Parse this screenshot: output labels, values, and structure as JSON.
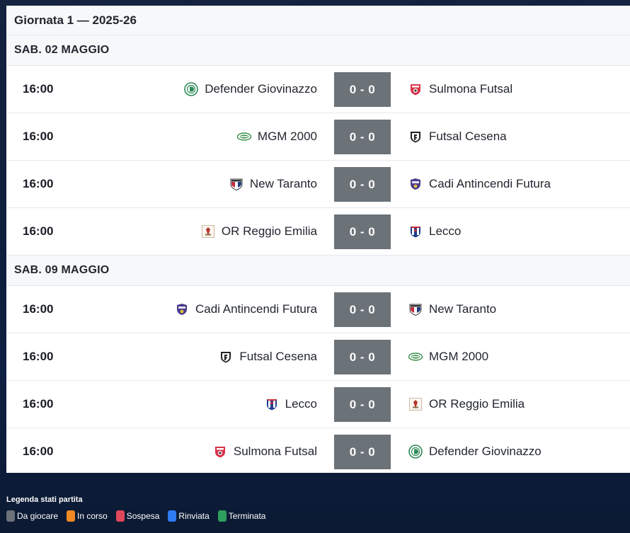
{
  "title": "Giornata 1 — 2025-26",
  "days": [
    {
      "label": "SAB. 02 MAGGIO",
      "matches": [
        {
          "time": "16:00",
          "home": "Defender Giovinazzo",
          "home_logo": "defender-logo",
          "score": "0 - 0",
          "away": "Sulmona Futsal",
          "away_logo": "sulmona-logo"
        },
        {
          "time": "16:00",
          "home": "MGM 2000",
          "home_logo": "mgm-logo",
          "score": "0 - 0",
          "away": "Futsal Cesena",
          "away_logo": "cesena-logo"
        },
        {
          "time": "16:00",
          "home": "New Taranto",
          "home_logo": "taranto-logo",
          "score": "0 - 0",
          "away": "Cadi Antincendi Futura",
          "away_logo": "cadi-logo"
        },
        {
          "time": "16:00",
          "home": "OR Reggio Emilia",
          "home_logo": "reggio-logo",
          "score": "0 - 0",
          "away": "Lecco",
          "away_logo": "lecco-logo"
        }
      ]
    },
    {
      "label": "SAB. 09 MAGGIO",
      "matches": [
        {
          "time": "16:00",
          "home": "Cadi Antincendi Futura",
          "home_logo": "cadi-logo",
          "score": "0 - 0",
          "away": "New Taranto",
          "away_logo": "taranto-logo"
        },
        {
          "time": "16:00",
          "home": "Futsal Cesena",
          "home_logo": "cesena-logo",
          "score": "0 - 0",
          "away": "MGM 2000",
          "away_logo": "mgm-logo"
        },
        {
          "time": "16:00",
          "home": "Lecco",
          "home_logo": "lecco-logo",
          "score": "0 - 0",
          "away": "OR Reggio Emilia",
          "away_logo": "reggio-logo"
        },
        {
          "time": "16:00",
          "home": "Sulmona Futsal",
          "home_logo": "sulmona-logo",
          "score": "0 - 0",
          "away": "Defender Giovinazzo",
          "away_logo": "defender-logo"
        }
      ]
    }
  ],
  "legend": {
    "title": "Legenda stati partita",
    "items": [
      {
        "label": "Da giocare",
        "color": "#6b7278"
      },
      {
        "label": "In corso",
        "color": "#f08a24"
      },
      {
        "label": "Sospesa",
        "color": "#e0475a"
      },
      {
        "label": "Rinviata",
        "color": "#2f7bf2"
      },
      {
        "label": "Terminata",
        "color": "#2e9e5e"
      }
    ]
  }
}
